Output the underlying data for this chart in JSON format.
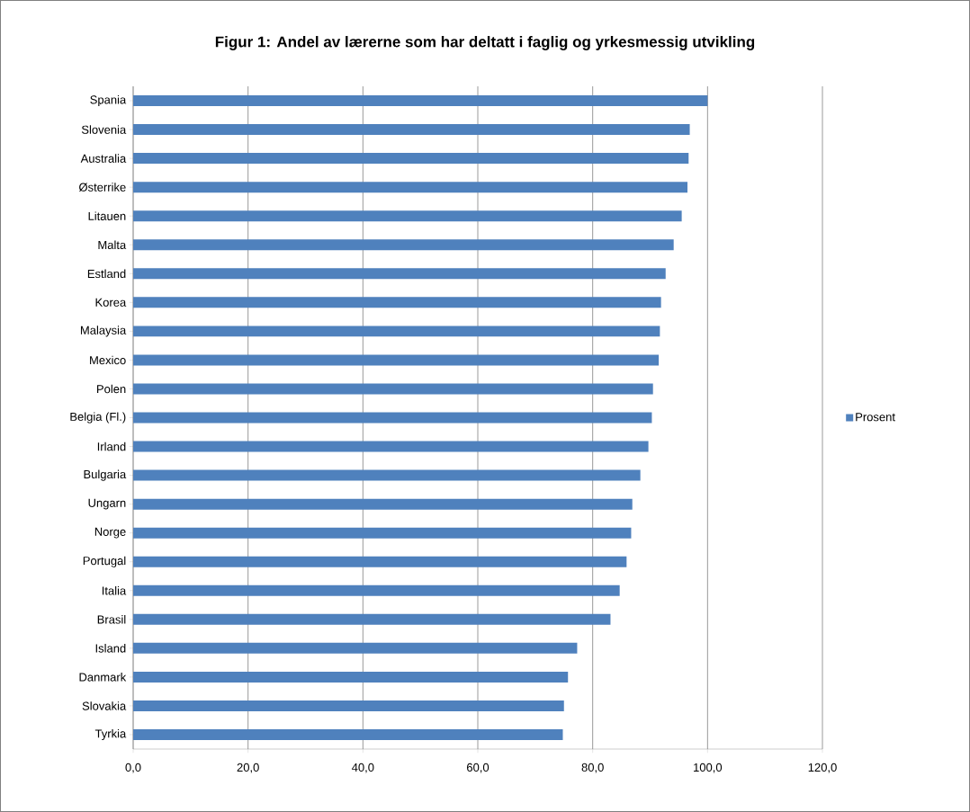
{
  "chart_data": {
    "type": "bar",
    "orientation": "horizontal",
    "title": "Figur 1: Andel av lærerne som har deltatt i faglig og yrkesmessig utvikling",
    "categories": [
      "Spania",
      "Slovenia",
      "Australia",
      "Østerrike",
      "Litauen",
      "Malta",
      "Estland",
      "Korea",
      "Malaysia",
      "Mexico",
      "Polen",
      "Belgia (Fl.)",
      "Irland",
      "Bulgaria",
      "Ungarn",
      "Norge",
      "Portugal",
      "Italia",
      "Brasil",
      "Island",
      "Danmark",
      "Slovakia",
      "Tyrkia"
    ],
    "series": [
      {
        "name": "Prosent",
        "color": "#4f81bd",
        "values": [
          100.0,
          96.9,
          96.7,
          96.5,
          95.5,
          94.1,
          92.7,
          91.9,
          91.7,
          91.5,
          90.5,
          90.3,
          89.7,
          88.3,
          86.9,
          86.7,
          85.9,
          84.7,
          83.1,
          77.3,
          75.7,
          75.0,
          74.8
        ]
      }
    ],
    "xlim": [
      0,
      120
    ],
    "xticks": [
      {
        "value": 0,
        "label": "0,0"
      },
      {
        "value": 20,
        "label": "20,0"
      },
      {
        "value": 40,
        "label": "40,0"
      },
      {
        "value": 60,
        "label": "60,0"
      },
      {
        "value": 80,
        "label": "80,0"
      },
      {
        "value": 100,
        "label": "100,0"
      },
      {
        "value": 120,
        "label": "120,0"
      }
    ],
    "grid": "x",
    "legend": "right"
  }
}
